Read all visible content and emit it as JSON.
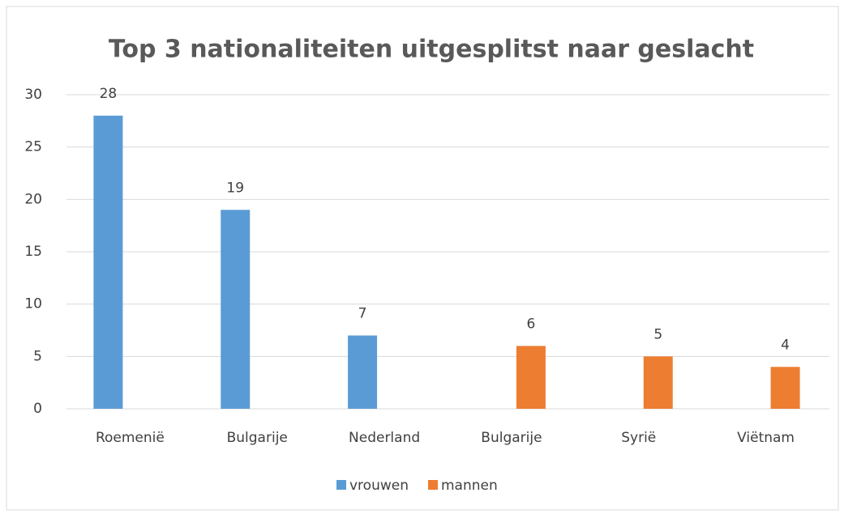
{
  "chart_data": {
    "type": "bar",
    "title": "Top 3 nationaliteiten uitgesplitst naar geslacht",
    "categories": [
      "Roemenië",
      "Bulgarije",
      "Nederland",
      "Bulgarije",
      "Syrië",
      "Viëtnam"
    ],
    "series": [
      {
        "name": "vrouwen",
        "color": "#5b9bd5",
        "values": [
          28,
          19,
          7,
          null,
          null,
          null
        ]
      },
      {
        "name": "mannen",
        "color": "#ed7d31",
        "values": [
          null,
          null,
          null,
          6,
          5,
          4
        ]
      }
    ],
    "ylim": [
      0,
      30
    ],
    "yticks": [
      0,
      5,
      10,
      15,
      20,
      25,
      30
    ],
    "grid": true,
    "legend": "bottom"
  }
}
